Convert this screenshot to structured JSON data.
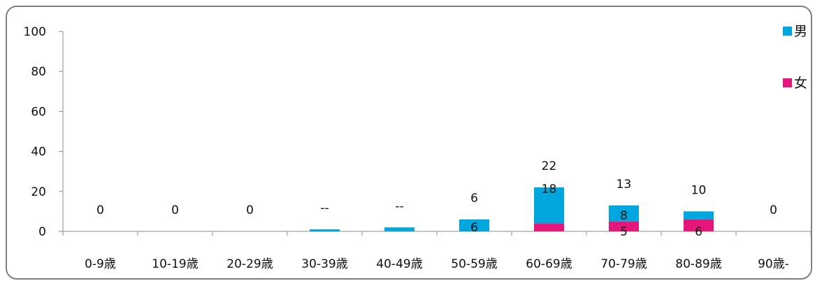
{
  "chart_data": {
    "type": "bar",
    "stacked": true,
    "categories": [
      "0-9歳",
      "10-19歳",
      "20-29歳",
      "30-39歳",
      "40-49歳",
      "50-59歳",
      "60-69歳",
      "70-79歳",
      "80-89歳",
      "90歳-"
    ],
    "series": [
      {
        "name": "女",
        "color": "#e6177b",
        "values": [
          0,
          0,
          0,
          0,
          0,
          0,
          4,
          5,
          6,
          0
        ]
      },
      {
        "name": "男",
        "color": "#00a6de",
        "values": [
          0,
          0,
          0,
          1,
          2,
          6,
          18,
          8,
          4,
          0
        ]
      }
    ],
    "total_labels": [
      "0",
      "0",
      "0",
      "--",
      "--",
      "6",
      "22",
      "13",
      "10",
      "0"
    ],
    "segment_labels": [
      {
        "category": "50-59歳",
        "text": "6"
      },
      {
        "category": "60-69歳",
        "text": "18"
      },
      {
        "category": "70-79歳",
        "text": "8"
      },
      {
        "category": "70-79歳",
        "text": "5"
      },
      {
        "category": "80-89歳",
        "text": "6"
      }
    ],
    "y_ticks": [
      0,
      20,
      40,
      60,
      80,
      100
    ],
    "ylim": [
      0,
      100
    ],
    "grid": false,
    "legend_position": "top-right",
    "title": "",
    "xlabel": "",
    "ylabel": ""
  }
}
